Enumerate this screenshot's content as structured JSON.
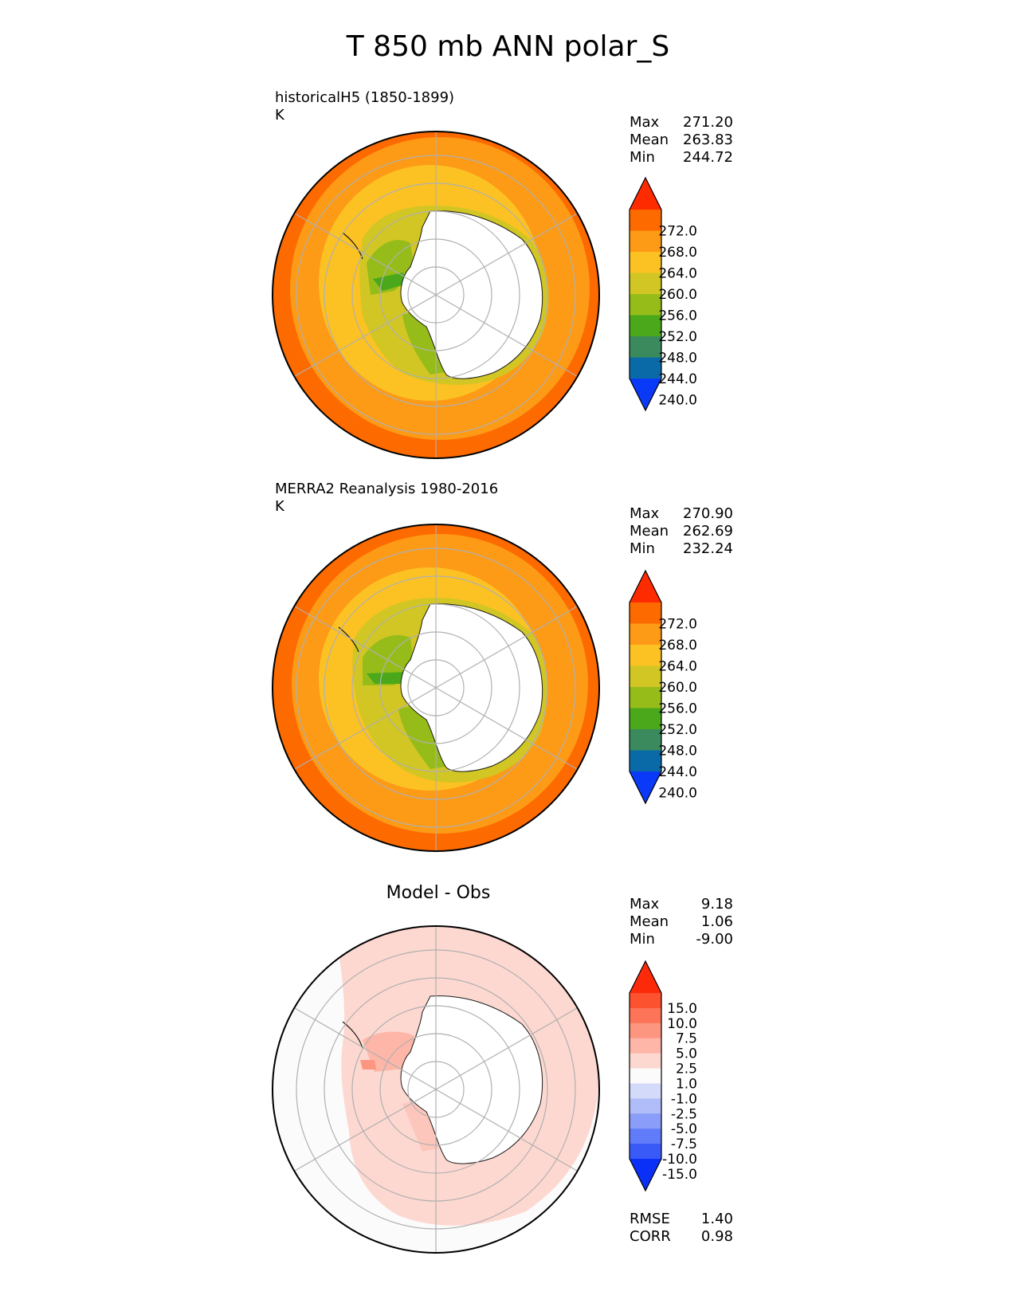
{
  "main_title": "T 850 mb ANN polar_S",
  "panels": [
    {
      "label_line1": "historicalH5 (1850-1899)",
      "label_line2": "K",
      "stats": [
        {
          "name": "Max",
          "value": "271.20"
        },
        {
          "name": "Mean",
          "value": "263.83"
        },
        {
          "name": "Min",
          "value": "244.72"
        }
      ]
    },
    {
      "label_line1": "MERRA2 Reanalysis 1980-2016",
      "label_line2": "K",
      "stats": [
        {
          "name": "Max",
          "value": "270.90"
        },
        {
          "name": "Mean",
          "value": "262.69"
        },
        {
          "name": "Min",
          "value": "232.24"
        }
      ]
    },
    {
      "title": "Model - Obs",
      "stats": [
        {
          "name": "Max",
          "value": "9.18"
        },
        {
          "name": "Mean",
          "value": "1.06"
        },
        {
          "name": "Min",
          "value": "-9.00"
        }
      ],
      "metrics": [
        {
          "name": "RMSE",
          "value": "1.40"
        },
        {
          "name": "CORR",
          "value": "0.98"
        }
      ]
    }
  ],
  "colorbar_temp": {
    "labels": [
      "272.0",
      "268.0",
      "264.0",
      "260.0",
      "256.0",
      "252.0",
      "248.0",
      "244.0",
      "240.0"
    ],
    "colors": [
      "#fe2a00",
      "#fd6a00",
      "#fd9a16",
      "#fcc223",
      "#d1c624",
      "#96bc1a",
      "#4aa81a",
      "#3a8a5e",
      "#0a6aa8",
      "#0a3af8"
    ]
  },
  "colorbar_diff": {
    "labels": [
      "15.0",
      "10.0",
      "7.5",
      "5.0",
      "2.5",
      "1.0",
      "-1.0",
      "-2.5",
      "-5.0",
      "-7.5",
      "-10.0",
      "-15.0"
    ],
    "colors": [
      "#fd2a0a",
      "#fd5230",
      "#fd7458",
      "#fd9680",
      "#fdb6a8",
      "#fdd8d0",
      "#fbfbfb",
      "#d4dafa",
      "#b0bdf8",
      "#8a9df8",
      "#607cf8",
      "#3a5af8",
      "#0a30f8"
    ]
  },
  "chart_data": [
    {
      "type": "heatmap",
      "title": "historicalH5 (1850-1899)",
      "units": "K",
      "projection": "south polar stereographic",
      "levels": [
        240,
        244,
        248,
        252,
        256,
        260,
        264,
        268,
        272
      ],
      "max": 271.2,
      "mean": 263.83,
      "min": 244.72
    },
    {
      "type": "heatmap",
      "title": "MERRA2 Reanalysis 1980-2016",
      "units": "K",
      "projection": "south polar stereographic",
      "levels": [
        240,
        244,
        248,
        252,
        256,
        260,
        264,
        268,
        272
      ],
      "max": 270.9,
      "mean": 262.69,
      "min": 232.24
    },
    {
      "type": "heatmap",
      "title": "Model - Obs",
      "projection": "south polar stereographic",
      "levels": [
        -15,
        -10,
        -7.5,
        -5,
        -2.5,
        -1,
        1,
        2.5,
        5,
        7.5,
        10,
        15
      ],
      "max": 9.18,
      "mean": 1.06,
      "min": -9.0,
      "rmse": 1.4,
      "corr": 0.98
    }
  ]
}
